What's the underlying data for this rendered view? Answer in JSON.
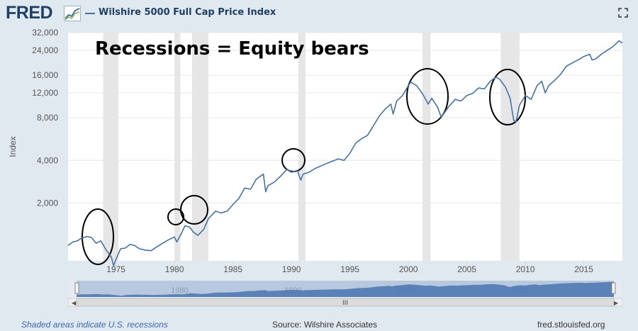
{
  "header": {
    "logo_text": "FRED",
    "logo_icon": "sparkline-icon",
    "series_title": "Wilshire 5000 Full Cap Price Index",
    "expand_icon": "fullscreen-icon"
  },
  "annotation_text": "Recessions = Equity bears",
  "footer": {
    "shaded_note": "Shaded areas indicate U.S. recessions",
    "source": "Source: Wilshire Associates",
    "site": "fred.stlouisfed.org"
  },
  "navigator": {
    "labels": [
      "1980",
      "1990",
      "2000",
      "2010"
    ],
    "grip_glyph": "III"
  },
  "colors": {
    "line": "#4572a7",
    "recession": "#e6e6e6",
    "plot_bg": "#ffffff",
    "page_bg": "#e1e9f0"
  },
  "chart_data": {
    "type": "line",
    "title": "",
    "xlabel": "",
    "ylabel": "Index",
    "y_scale": "log",
    "xlim": [
      1970.9,
      2018.3
    ],
    "ylim": [
      780,
      32000
    ],
    "y_ticks": [
      2000,
      4000,
      8000,
      12000,
      16000,
      24000,
      32000
    ],
    "y_tick_labels": [
      "2,000",
      "4,000",
      "8,000",
      "12,000",
      "16,000",
      "24,000",
      "32,000"
    ],
    "x_ticks": [
      1975,
      1980,
      1985,
      1990,
      1995,
      2000,
      2005,
      2010,
      2015
    ],
    "x_tick_labels": [
      "1975",
      "1980",
      "1985",
      "1990",
      "1995",
      "2000",
      "2005",
      "2010",
      "2015"
    ],
    "grid": "horizontal",
    "recessions": [
      [
        1973.9,
        1975.2
      ],
      [
        1980.0,
        1980.5
      ],
      [
        1981.5,
        1982.9
      ],
      [
        1990.6,
        1991.2
      ],
      [
        2001.2,
        2001.9
      ],
      [
        2007.9,
        2009.5
      ]
    ],
    "series": [
      {
        "x": [
          1970.9,
          1971.3,
          1971.7,
          1972.0,
          1972.5,
          1972.9,
          1973.3,
          1973.7,
          1974.2,
          1974.6,
          1974.8,
          1975.0,
          1975.4,
          1975.8,
          1976.2,
          1976.6,
          1977.0,
          1977.5,
          1978.0,
          1978.5,
          1979.0,
          1979.5,
          1980.0,
          1980.2,
          1980.5,
          1980.9,
          1981.3,
          1981.6,
          1982.0,
          1982.5,
          1982.9,
          1983.5,
          1984.0,
          1984.5,
          1985.0,
          1985.5,
          1986.0,
          1986.5,
          1987.0,
          1987.6,
          1987.8,
          1988.0,
          1988.5,
          1989.0,
          1989.6,
          1990.0,
          1990.5,
          1990.8,
          1991.0,
          1991.5,
          1992.0,
          1993.0,
          1994.0,
          1994.5,
          1995.0,
          1995.5,
          1996.0,
          1996.5,
          1997.0,
          1997.5,
          1998.0,
          1998.5,
          1998.7,
          1999.0,
          1999.5,
          2000.0,
          2000.2,
          2000.7,
          2001.0,
          2001.3,
          2001.7,
          2002.0,
          2002.5,
          2002.8,
          2003.0,
          2003.5,
          2004.0,
          2004.5,
          2005.0,
          2005.5,
          2006.0,
          2006.5,
          2007.0,
          2007.5,
          2007.8,
          2008.3,
          2008.7,
          2009.0,
          2009.2,
          2009.5,
          2010.0,
          2010.5,
          2011.0,
          2011.4,
          2011.7,
          2012.0,
          2012.5,
          2013.0,
          2013.5,
          2014.0,
          2014.5,
          2015.0,
          2015.5,
          2015.7,
          2016.0,
          2016.5,
          2017.0,
          2017.5,
          2018.0,
          2018.3
        ],
        "y": [
          1000,
          1060,
          1080,
          1120,
          1160,
          1140,
          1040,
          1080,
          920,
          830,
          720,
          800,
          950,
          960,
          1020,
          1000,
          950,
          930,
          920,
          980,
          1040,
          1100,
          1150,
          1060,
          1180,
          1380,
          1350,
          1250,
          1180,
          1300,
          1550,
          1750,
          1700,
          1750,
          1950,
          2150,
          2550,
          2500,
          2950,
          3200,
          2400,
          2650,
          2800,
          3050,
          3450,
          3300,
          3400,
          2900,
          3200,
          3300,
          3500,
          3800,
          4100,
          4000,
          4500,
          5300,
          5700,
          6000,
          7000,
          8200,
          9200,
          10000,
          8500,
          10500,
          11500,
          13500,
          14300,
          13500,
          12500,
          11500,
          10000,
          11000,
          9500,
          8100,
          8500,
          9700,
          10800,
          10500,
          11500,
          11900,
          13000,
          12800,
          14500,
          15500,
          15000,
          13200,
          11000,
          7700,
          7500,
          9800,
          11500,
          10800,
          13500,
          14500,
          12000,
          13500,
          14700,
          16200,
          18500,
          19500,
          20500,
          21700,
          22500,
          20500,
          20800,
          22500,
          24000,
          25500,
          28000,
          27000
        ]
      }
    ]
  }
}
